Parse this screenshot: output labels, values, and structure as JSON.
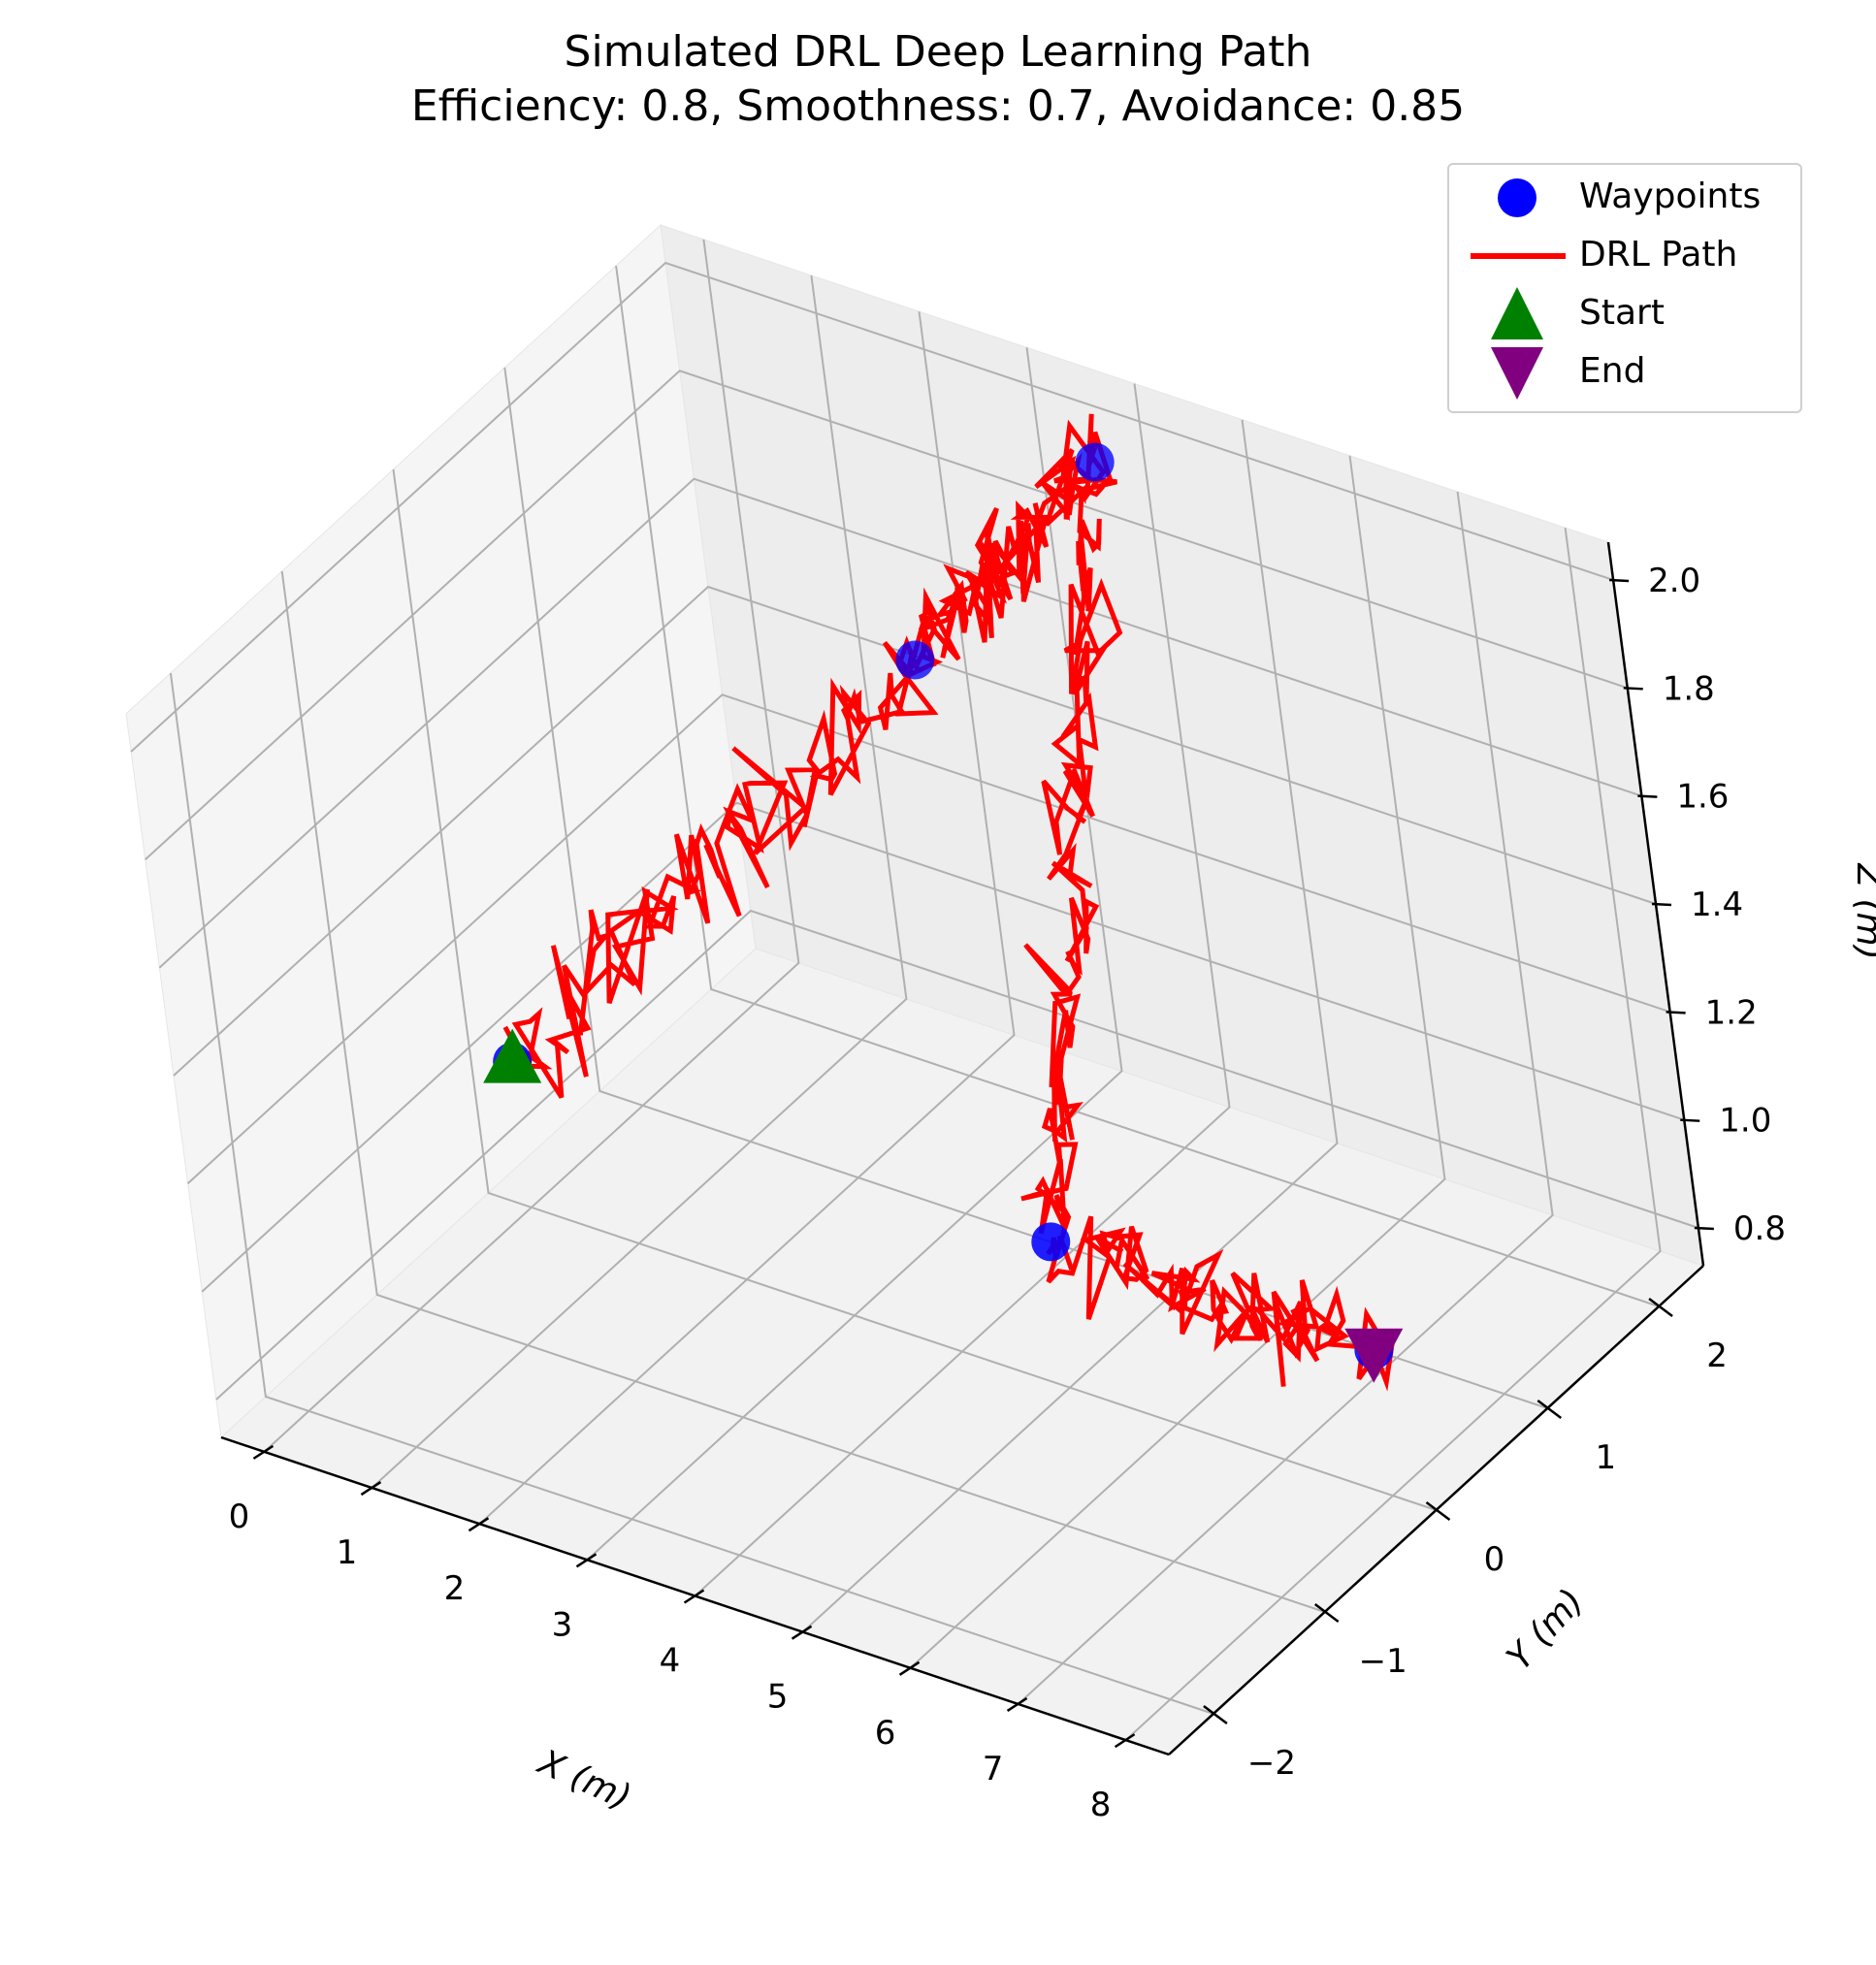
{
  "title": {
    "line1": "Simulated DRL Deep Learning Path",
    "line2": "Efficiency: 0.8, Smoothness: 0.7, Avoidance: 0.85"
  },
  "colors": {
    "path": "#ff0000",
    "waypoint": "#0000ff",
    "start": "#008000",
    "end": "#800080",
    "pane": "#f2f2f2",
    "grid": "#b0b0b0"
  },
  "legend": {
    "placement": "top-right",
    "items": [
      {
        "label": "Waypoints",
        "marker": "circle",
        "color": "#0000ff"
      },
      {
        "label": "DRL Path",
        "marker": "line",
        "color": "#ff0000"
      },
      {
        "label": "Start",
        "marker": "triangle-up",
        "color": "#008000"
      },
      {
        "label": "End",
        "marker": "triangle-down",
        "color": "#800080"
      }
    ]
  },
  "chart_data": {
    "type": "line3d",
    "xlabel": "X (m)",
    "ylabel": "Y (m)",
    "zlabel": "Z (m)",
    "xlim": [
      -0.4,
      8.4
    ],
    "ylim": [
      -2.4,
      2.4
    ],
    "zlim": [
      0.73,
      2.07
    ],
    "x_ticks": [
      0,
      1,
      2,
      3,
      4,
      5,
      6,
      7,
      8
    ],
    "x_tick_labels": [
      "0",
      "1",
      "2",
      "3",
      "4",
      "5",
      "6",
      "7",
      "8"
    ],
    "y_ticks": [
      -2,
      -1,
      0,
      1,
      2
    ],
    "y_tick_labels": [
      "−2",
      "−1",
      "0",
      "1",
      "2"
    ],
    "z_ticks": [
      0.8,
      1.0,
      1.2,
      1.4,
      1.6,
      1.8,
      2.0
    ],
    "z_tick_labels": [
      "0.8",
      "1.0",
      "1.2",
      "1.4",
      "1.6",
      "1.8",
      "2.0"
    ],
    "grid": true,
    "waypoints": [
      {
        "x": 0,
        "y": 0,
        "z": 1.0
      },
      {
        "x": 2,
        "y": 2,
        "z": 1.5
      },
      {
        "x": 4,
        "y": 2,
        "z": 2.0
      },
      {
        "x": 5,
        "y": 0,
        "z": 1.0
      },
      {
        "x": 8,
        "y": 0,
        "z": 1.0
      }
    ],
    "start": {
      "x": 0,
      "y": 0,
      "z": 1.0
    },
    "end": {
      "x": 8,
      "y": 0,
      "z": 1.0
    },
    "series": [
      {
        "name": "DRL Path",
        "noise_amplitude": 0.09,
        "segments": [
          {
            "from": [
              0,
              0,
              1.0
            ],
            "to": [
              2,
              2,
              1.5
            ]
          },
          {
            "from": [
              2,
              2,
              1.5
            ],
            "to": [
              4,
              2,
              2.0
            ]
          },
          {
            "from": [
              4,
              2,
              2.0
            ],
            "to": [
              5,
              0,
              1.0
            ]
          },
          {
            "from": [
              5,
              0,
              1.0
            ],
            "to": [
              8,
              0,
              1.0
            ]
          }
        ]
      }
    ]
  }
}
